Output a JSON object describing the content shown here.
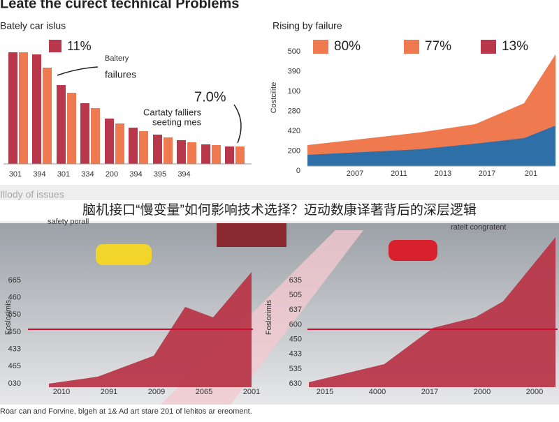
{
  "header": {
    "title": "Leate the curect technical Problems"
  },
  "left_panel": {
    "title": "Bately car islus",
    "legend": "11%",
    "annotation_top_1": "Baltery",
    "annotation_top_2": "failures",
    "annotation_value": "7.0%",
    "annotation_bottom_1": "Cartaty falliers",
    "annotation_bottom_2": "seeting mes",
    "x_labels": [
      "301",
      "394",
      "301",
      "334",
      "200",
      "394",
      "395",
      "394"
    ]
  },
  "right_panel": {
    "title": "Rising by failure",
    "legend": [
      "80%",
      "77%",
      "13%"
    ],
    "y_title": "Costcilite",
    "y_labels": [
      "500",
      "390",
      "100",
      "280",
      "420",
      "200",
      "0"
    ],
    "x_labels": [
      "2007",
      "2011",
      "2013",
      "2017",
      "201"
    ]
  },
  "middle": {
    "subtitle": "Illody of issues",
    "banner": "脑机接口“慢变量”如何影响技术选择？迈动数康译著背后的深层逻辑",
    "callout_left": "safety porall",
    "callout_right": "rateit congratent"
  },
  "bottom_left": {
    "y_title": "Foslorimis",
    "y_labels": [
      "665",
      "460",
      "650",
      "450",
      "433",
      "465",
      "030"
    ],
    "x_labels": [
      "2010",
      "2091",
      "2009",
      "2065",
      "2001"
    ]
  },
  "bottom_right": {
    "y_title": "Foslorimis",
    "y_labels": [
      "635",
      "505",
      "637",
      "600",
      "450",
      "433",
      "535",
      "630"
    ],
    "x_labels": [
      "2015",
      "4000",
      "2017",
      "2000",
      "2000"
    ]
  },
  "footer": {
    "caption": "Roar can and Forvine, blgeh at 1& Ad art stare 201 of lehitos ar ereoment."
  }
}
